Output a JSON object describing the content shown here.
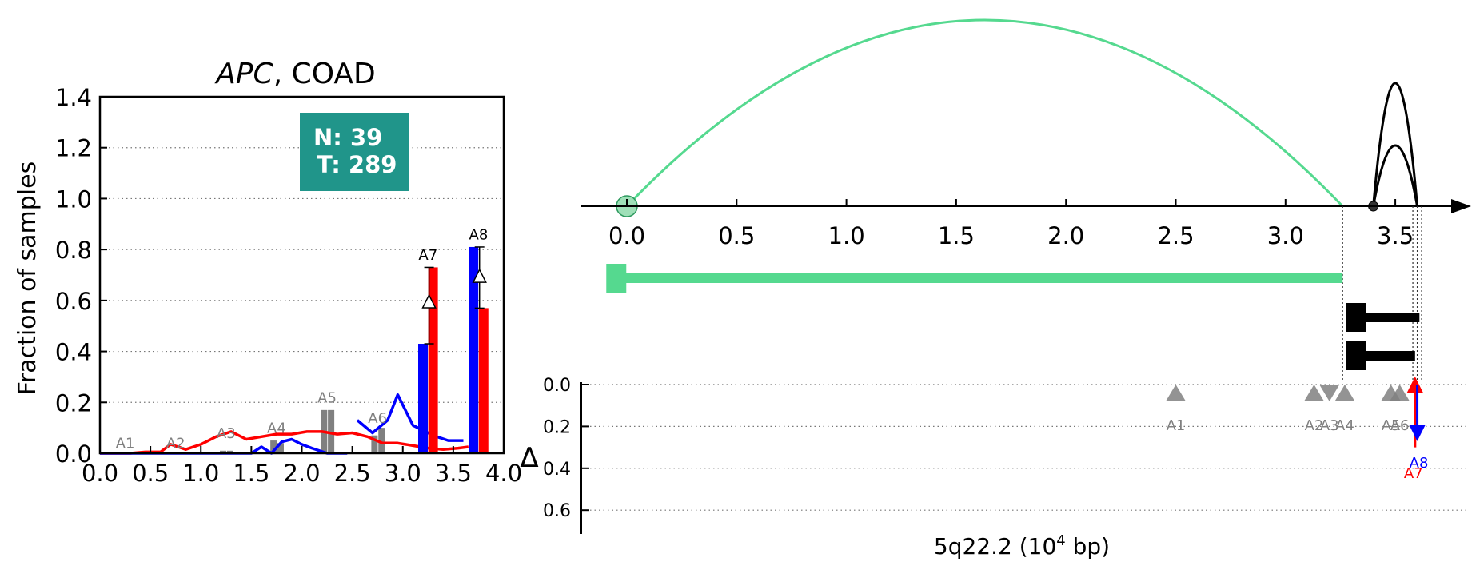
{
  "colors": {
    "normal": "#0000ff",
    "tumor": "#ff0000",
    "other_sites": "#808080",
    "alt_exon": "#55d98f",
    "count_box": "#20958a",
    "black": "#000000"
  },
  "left_panel": {
    "title_gene": "APC",
    "title_rest": ", COAD",
    "ylabel": "Fraction of samples",
    "count_box": {
      "normal": "N: 39",
      "tumor": "T: 289"
    }
  },
  "right_panel": {
    "xlabel_main": "5q22.2 (10",
    "xlabel_exp": "4",
    "xlabel_tail": " bp)",
    "delta_label": "Δ"
  },
  "chart_data": [
    {
      "type": "bar",
      "subtype": "bar+line",
      "title": "APC, COAD",
      "xlabel": "",
      "ylabel": "Fraction of samples",
      "xlim": [
        0,
        4
      ],
      "ylim": [
        0,
        1.4
      ],
      "xticks": [
        "0.0",
        "0.5",
        "1.0",
        "1.5",
        "2.0",
        "2.5",
        "3.0",
        "3.5",
        "4.0"
      ],
      "yticks": [
        "0.0",
        "0.2",
        "0.4",
        "0.6",
        "0.8",
        "1.0",
        "1.2",
        "1.4"
      ],
      "grid": "horizontal dotted",
      "site_labels": [
        {
          "label": "A1",
          "x": 0.25,
          "y": 0.02,
          "color": "#808080"
        },
        {
          "label": "A2",
          "x": 0.75,
          "y": 0.02,
          "color": "#808080"
        },
        {
          "label": "A3",
          "x": 1.25,
          "y": 0.06,
          "color": "#808080"
        },
        {
          "label": "A4",
          "x": 1.75,
          "y": 0.08,
          "color": "#808080"
        },
        {
          "label": "A5",
          "x": 2.25,
          "y": 0.2,
          "color": "#808080"
        },
        {
          "label": "A6",
          "x": 2.75,
          "y": 0.12,
          "color": "#808080"
        },
        {
          "label": "A7",
          "x": 3.25,
          "y": 0.76,
          "color": "#000000"
        },
        {
          "label": "A8",
          "x": 3.75,
          "y": 0.84,
          "color": "#000000"
        }
      ],
      "gray_bars": [
        {
          "x": 1.22,
          "value": 0.01
        },
        {
          "x": 1.29,
          "value": 0.01
        },
        {
          "x": 1.72,
          "value": 0.05
        },
        {
          "x": 1.79,
          "value": 0.04
        },
        {
          "x": 2.22,
          "value": 0.17
        },
        {
          "x": 2.29,
          "value": 0.17
        },
        {
          "x": 2.72,
          "value": 0.07
        },
        {
          "x": 2.79,
          "value": 0.1
        }
      ],
      "series": [
        {
          "name": "N",
          "color": "#0000ff",
          "bars": [
            {
              "x": 3.2,
              "value": 0.43
            },
            {
              "x": 3.7,
              "value": 0.81
            }
          ],
          "line_x": [
            2.55,
            2.7,
            2.85,
            2.95,
            3.1,
            3.2,
            3.3,
            3.45,
            3.6
          ],
          "line_y": [
            0.13,
            0.08,
            0.13,
            0.23,
            0.11,
            0.09,
            0.07,
            0.05,
            0.05
          ]
        },
        {
          "name": "T",
          "color": "#ff0000",
          "bars": [
            {
              "x": 3.3,
              "value": 0.73
            },
            {
              "x": 3.8,
              "value": 0.57
            }
          ],
          "line_x": [
            0.0,
            0.15,
            0.3,
            0.45,
            0.6,
            0.7,
            0.85,
            1.0,
            1.15,
            1.3,
            1.45,
            1.6,
            1.75,
            1.9,
            2.05,
            2.2,
            2.35,
            2.5,
            2.65,
            2.8,
            2.95,
            3.1,
            3.25,
            3.4,
            3.55,
            3.65
          ],
          "line_y": [
            0.0,
            0.0,
            0.0,
            0.005,
            0.005,
            0.035,
            0.015,
            0.035,
            0.065,
            0.085,
            0.055,
            0.065,
            0.075,
            0.075,
            0.085,
            0.085,
            0.075,
            0.08,
            0.065,
            0.04,
            0.04,
            0.03,
            0.02,
            0.015,
            0.02,
            0.025
          ]
        },
        {
          "name": "N-low",
          "color": "#0000ff",
          "bars": [],
          "line_x": [
            0.0,
            1.5,
            1.6,
            1.7,
            1.8,
            1.9,
            2.0,
            2.1,
            2.25,
            2.45
          ],
          "line_y": [
            0.0,
            0.0,
            0.025,
            0.0,
            0.045,
            0.055,
            0.035,
            0.02,
            0.0,
            0.0
          ]
        }
      ],
      "delta_markers": [
        {
          "x": 3.26,
          "low": 0.43,
          "high": 0.73,
          "mid": 0.59
        },
        {
          "x": 3.76,
          "low": 0.57,
          "high": 0.81,
          "mid": 0.69
        }
      ]
    },
    {
      "type": "line",
      "subtype": "gene-structure",
      "xlabel": "5q22.2 (10^4 bp)",
      "xlim": [
        -0.2,
        4.0
      ],
      "xticks": [
        "0.0",
        "0.5",
        "1.0",
        "1.5",
        "2.0",
        "2.5",
        "3.0",
        "3.5"
      ],
      "arcs": [
        {
          "from": 0.0,
          "to": 3.26,
          "peak": 1.0,
          "color": "#55d98f"
        },
        {
          "from": 3.4,
          "to": 3.6,
          "peak": 0.66,
          "color": "#000000"
        },
        {
          "from": 3.4,
          "to": 3.6,
          "peak": 0.33,
          "color": "#000000"
        }
      ],
      "transcripts": [
        {
          "start": -0.05,
          "end": 3.26,
          "color": "#55d98f"
        },
        {
          "start": 3.32,
          "end": 3.61,
          "color": "#000000"
        },
        {
          "start": 3.32,
          "end": 3.59,
          "color": "#000000"
        }
      ],
      "delta_axis": {
        "label": "Δ",
        "ylim": [
          0,
          0.7
        ],
        "yticks": [
          "0.0",
          "0.2",
          "0.4",
          "0.6"
        ]
      },
      "sites": [
        {
          "label": "A1",
          "x": 2.5,
          "delta": 0.02,
          "dir": "up",
          "color": "#808080"
        },
        {
          "label": "A2",
          "x": 3.13,
          "delta": 0.02,
          "dir": "up",
          "color": "#808080"
        },
        {
          "label": "A3",
          "x": 3.2,
          "delta": 0.02,
          "dir": "down",
          "color": "#808080"
        },
        {
          "label": "A4",
          "x": 3.27,
          "delta": 0.02,
          "dir": "up",
          "color": "#808080"
        },
        {
          "label": "A5",
          "x": 3.48,
          "delta": 0.02,
          "dir": "up",
          "color": "#808080"
        },
        {
          "label": "A6",
          "x": 3.52,
          "delta": 0.02,
          "dir": "up",
          "color": "#808080"
        },
        {
          "label": "A7",
          "x": 3.59,
          "delta": 0.3,
          "dir": "up",
          "color": "#ff0000"
        },
        {
          "label": "A8",
          "x": 3.6,
          "delta": 0.24,
          "dir": "down",
          "color": "#0000ff"
        }
      ]
    }
  ]
}
